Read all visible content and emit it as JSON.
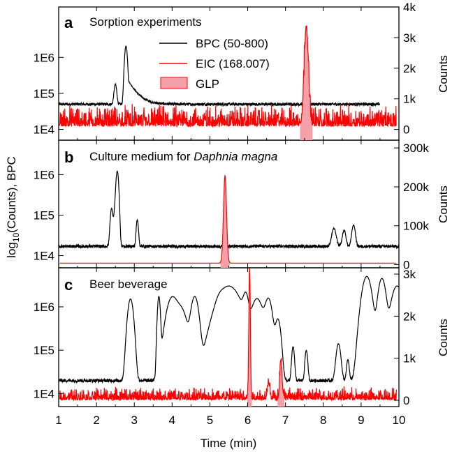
{
  "chart_data": {
    "type": "line",
    "xlabel": "Time (min)",
    "ylabel_left": "log₁₀(Counts), BPC",
    "ylabel_left_parts": {
      "pre": "log",
      "sub": "10",
      "post": "(Counts), BPC"
    },
    "xlim": [
      1,
      10
    ],
    "x_ticks": [
      "1",
      "2",
      "3",
      "4",
      "5",
      "6",
      "7",
      "8",
      "9",
      "10"
    ],
    "colors": {
      "bpc": "#000000",
      "eic": "#ff0000",
      "glp_fill": "#f4a0a8",
      "glp_stroke": "#ff0000"
    },
    "legend": [
      {
        "label": "BPC (50-800)",
        "style": "black-line"
      },
      {
        "label": "EIC (168.007)",
        "style": "red-line"
      },
      {
        "label": "GLP",
        "style": "filled-area"
      }
    ],
    "panels": [
      {
        "letter": "a",
        "title": "Sorption experiments",
        "left_ticks": [
          "1E6",
          "1E5",
          "1E4"
        ],
        "right_ticks": [
          "4k",
          "3k",
          "2k",
          "1k",
          "0"
        ],
        "right_label": "Counts",
        "left_log_range": [
          3.7,
          7.4
        ],
        "right_range": [
          -350,
          4000
        ],
        "bpc_xrange": [
          1,
          9.5
        ],
        "bpc_baseline": 50000,
        "bpc_peaks": [
          {
            "x": 2.5,
            "height": 130000,
            "width": 0.03
          },
          {
            "x": 2.78,
            "height": 2000000,
            "width": 0.03,
            "tail": 0.2
          }
        ],
        "eic_baseline": 200,
        "eic_noise": 350,
        "eic_peaks": [
          {
            "x": 7.55,
            "height": 3200,
            "width": 0.055
          }
        ],
        "glp_peaks": [
          {
            "x": 7.55,
            "height": 3200,
            "width": 0.055
          }
        ]
      },
      {
        "letter": "b",
        "title_pre": "Culture medium for ",
        "title_italic": "Daphnia magna",
        "left_ticks": [
          "1E6",
          "1E5",
          "1E4"
        ],
        "right_ticks": [
          "300k",
          "200k",
          "100k",
          "0"
        ],
        "right_label": "Counts",
        "left_log_range": [
          3.7,
          6.85
        ],
        "right_range": [
          -8000,
          320000
        ],
        "bpc_xrange": [
          1,
          10
        ],
        "bpc_baseline": 17000,
        "bpc_peaks": [
          {
            "x": 2.4,
            "height": 130000,
            "width": 0.03
          },
          {
            "x": 2.48,
            "height": 80000,
            "width": 0.025
          },
          {
            "x": 2.55,
            "height": 1200000,
            "width": 0.03
          },
          {
            "x": 3.08,
            "height": 60000,
            "width": 0.025
          },
          {
            "x": 8.28,
            "height": 30000,
            "width": 0.05
          },
          {
            "x": 8.55,
            "height": 25000,
            "width": 0.04
          },
          {
            "x": 8.8,
            "height": 40000,
            "width": 0.04
          }
        ],
        "eic_baseline": 4000,
        "eic_noise": 0,
        "eic_peaks": [
          {
            "x": 5.4,
            "height": 225000,
            "width": 0.04
          }
        ],
        "glp_peaks": [
          {
            "x": 5.4,
            "height": 225000,
            "width": 0.04
          }
        ]
      },
      {
        "letter": "c",
        "title": "Beer beverage",
        "left_ticks": [
          "1E6",
          "1E5",
          "1E4"
        ],
        "right_ticks": [
          "3k",
          "2k",
          "1k",
          "0"
        ],
        "right_label": "Counts",
        "left_log_range": [
          3.7,
          6.9
        ],
        "right_range": [
          -150,
          3150
        ],
        "bpc_xrange": [
          1,
          10
        ],
        "bpc_baseline": 20000,
        "bpc_peaks": [
          {
            "x": 2.9,
            "height": 1500000,
            "width": 0.06
          },
          {
            "x": 3.65,
            "height": 1700000,
            "width": 0.03
          },
          {
            "x": 4.0,
            "height": 1600000,
            "width": 0.12
          },
          {
            "x": 4.25,
            "height": 800000,
            "width": 0.12
          },
          {
            "x": 4.6,
            "height": 1700000,
            "width": 0.08
          },
          {
            "x": 5.25,
            "height": 250000,
            "width": 0.08
          },
          {
            "x": 5.5,
            "height": 3000000,
            "width": 0.25
          },
          {
            "x": 5.95,
            "height": 1500000,
            "width": 0.06
          },
          {
            "x": 6.25,
            "height": 1500000,
            "width": 0.12
          },
          {
            "x": 6.55,
            "height": 1500000,
            "width": 0.08
          },
          {
            "x": 6.8,
            "height": 500000,
            "width": 0.06
          },
          {
            "x": 7.2,
            "height": 100000,
            "width": 0.03
          },
          {
            "x": 7.55,
            "height": 80000,
            "width": 0.03
          },
          {
            "x": 8.4,
            "height": 120000,
            "width": 0.05
          },
          {
            "x": 8.65,
            "height": 40000,
            "width": 0.03
          },
          {
            "x": 9.15,
            "height": 5000000,
            "width": 0.1
          },
          {
            "x": 9.55,
            "height": 4500000,
            "width": 0.08
          },
          {
            "x": 9.95,
            "height": 3000000,
            "width": 0.12
          }
        ],
        "eic_baseline": 50,
        "eic_noise": 150,
        "eic_peaks": [
          {
            "x": 6.05,
            "height": 3100,
            "width": 0.02
          },
          {
            "x": 6.55,
            "height": 350,
            "width": 0.03
          },
          {
            "x": 6.88,
            "height": 900,
            "width": 0.03
          }
        ],
        "glp_peaks": [
          {
            "x": 6.05,
            "height": 3100,
            "width": 0.02
          },
          {
            "x": 6.88,
            "height": 900,
            "width": 0.03
          }
        ]
      }
    ]
  }
}
